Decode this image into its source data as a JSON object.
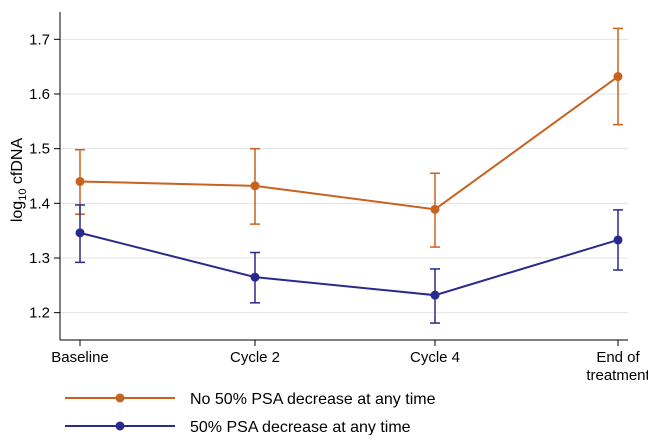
{
  "chart_data": {
    "type": "line",
    "title": "",
    "xlabel": "",
    "ylabel_main": "log",
    "ylabel_sub": "10",
    "ylabel_rest": " cfDNA",
    "categories": [
      "Baseline",
      "Cycle 2",
      "Cycle 4",
      "End of treatment"
    ],
    "category_lines": [
      [
        "Baseline"
      ],
      [
        "Cycle 2"
      ],
      [
        "Cycle 4"
      ],
      [
        "End of",
        "treatment"
      ]
    ],
    "ylim": [
      1.15,
      1.75
    ],
    "yticks": [
      1.2,
      1.3,
      1.4,
      1.5,
      1.6,
      1.7
    ],
    "ytick_labels": [
      "1.2",
      "1.3",
      "1.4",
      "1.5",
      "1.6",
      "1.7"
    ],
    "grid": true,
    "legend_position": "bottom",
    "series": [
      {
        "name": "No 50% PSA decrease at any time",
        "color": "#C8621F",
        "values": [
          1.44,
          1.432,
          1.389,
          1.632
        ],
        "lower": [
          1.38,
          1.362,
          1.32,
          1.544
        ],
        "upper": [
          1.498,
          1.5,
          1.455,
          1.72
        ]
      },
      {
        "name": "50% PSA decrease at any time",
        "color": "#2A2A8C",
        "values": [
          1.346,
          1.265,
          1.232,
          1.333
        ],
        "lower": [
          1.292,
          1.218,
          1.181,
          1.278
        ],
        "upper": [
          1.397,
          1.31,
          1.28,
          1.388
        ]
      }
    ]
  }
}
